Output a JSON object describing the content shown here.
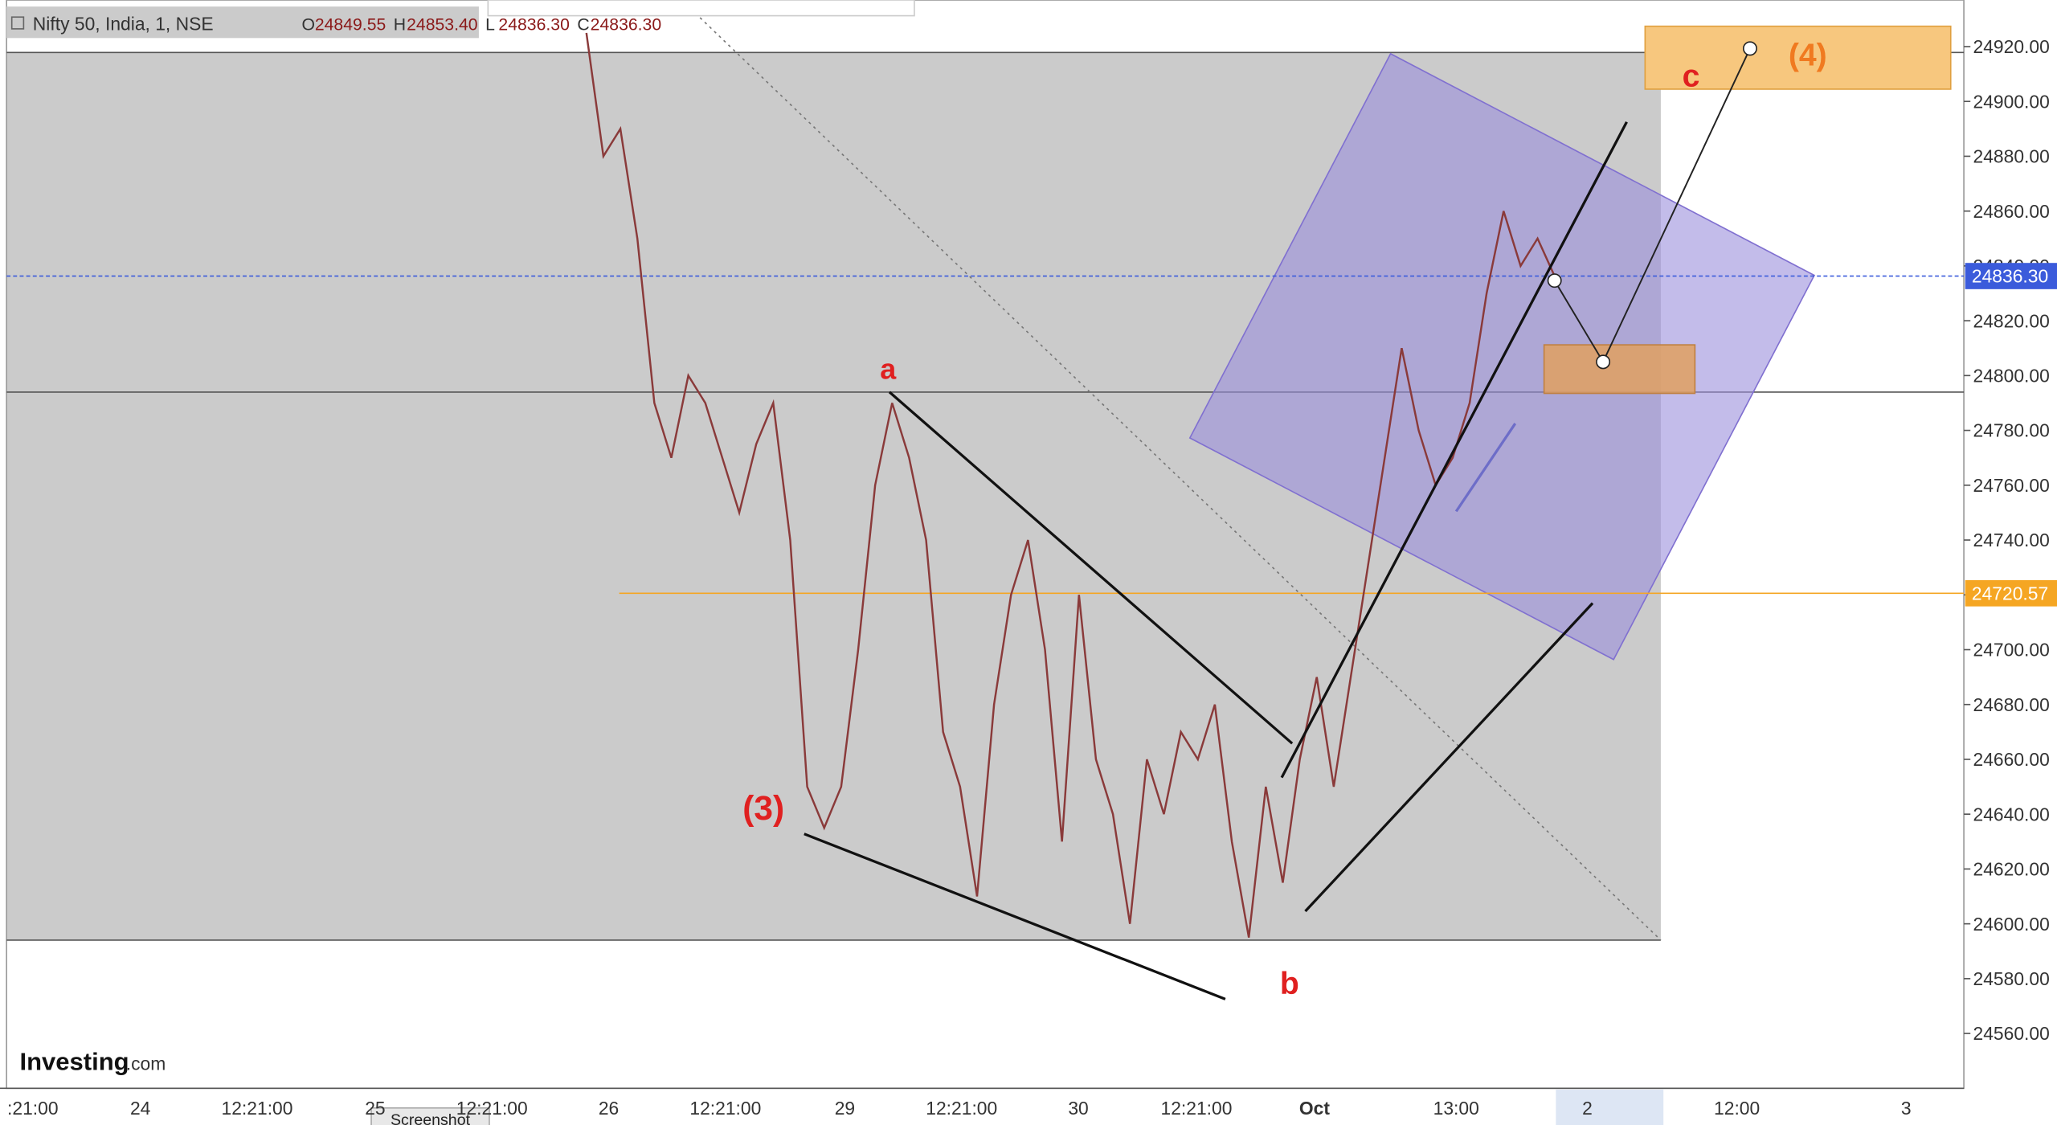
{
  "header": {
    "symbol": "Nifty 50, India, 1, NSE",
    "ohlc": [
      {
        "key": "O",
        "value": "24849.55"
      },
      {
        "key": "H",
        "value": "24853.40"
      },
      {
        "key": "L",
        "value": "24836.30"
      },
      {
        "key": "C",
        "value": "24836.30"
      }
    ]
  },
  "chart_data": {
    "type": "line",
    "color": "#8a3a3a",
    "x_labels": [
      ":21:00",
      "24",
      "12:21:00",
      "25",
      "12:21:00",
      "26",
      "12:21:00",
      "29",
      "12:21:00",
      "30",
      "12:21:00",
      "Oct",
      "13:00",
      "2",
      "12:00",
      "3"
    ],
    "ylim": [
      24540,
      24937
    ],
    "yticks": [
      {
        "value": 24560,
        "label": "24560.00"
      },
      {
        "value": 24580,
        "label": "24580.00"
      },
      {
        "value": 24600,
        "label": "24600.00"
      },
      {
        "value": 24620,
        "label": "24620.00"
      },
      {
        "value": 24640,
        "label": "24640.00"
      },
      {
        "value": 24660,
        "label": "24660.00"
      },
      {
        "value": 24680,
        "label": "24680.00"
      },
      {
        "value": 24700,
        "label": "24700.00"
      },
      {
        "value": 24720,
        "label": "24720.00"
      },
      {
        "value": 24740,
        "label": "24740.00"
      },
      {
        "value": 24760,
        "label": "24760.00"
      },
      {
        "value": 24780,
        "label": "24780.00"
      },
      {
        "value": 24800,
        "label": "24800.00"
      },
      {
        "value": 24820,
        "label": "24820.00"
      },
      {
        "value": 24840,
        "label": "24840.00"
      },
      {
        "value": 24860,
        "label": "24860.00"
      },
      {
        "value": 24880,
        "label": "24880.00"
      },
      {
        "value": 24900,
        "label": "24900.00"
      },
      {
        "value": 24920,
        "label": "24920.00"
      }
    ],
    "values": [
      24925,
      24880,
      24890,
      24850,
      24790,
      24770,
      24800,
      24790,
      24770,
      24750,
      24775,
      24790,
      24740,
      24650,
      24635,
      24650,
      24700,
      24760,
      24790,
      24770,
      24740,
      24670,
      24650,
      24610,
      24680,
      24720,
      24740,
      24700,
      24630,
      24720,
      24660,
      24640,
      24600,
      24660,
      24640,
      24670,
      24660,
      24680,
      24630,
      24595,
      24650,
      24615,
      24660,
      24690,
      24650,
      24690,
      24730,
      24770,
      24810,
      24780,
      24760,
      24770,
      24790,
      24830,
      24860,
      24840,
      24850,
      24836.3
    ],
    "price_lines": [
      {
        "value": 24836.3,
        "label": "24836.30",
        "color": "#3b5bdb"
      },
      {
        "value": 24720.57,
        "label": "24720.57",
        "color": "#f5a623"
      }
    ],
    "annotations": {
      "a": "a",
      "b": "b",
      "c": "c",
      "w3": "(3)",
      "w4": "(4)"
    }
  },
  "footer": {
    "logo": "Investing",
    "logo_suffix": ".com",
    "screenshot": "Screenshot"
  }
}
